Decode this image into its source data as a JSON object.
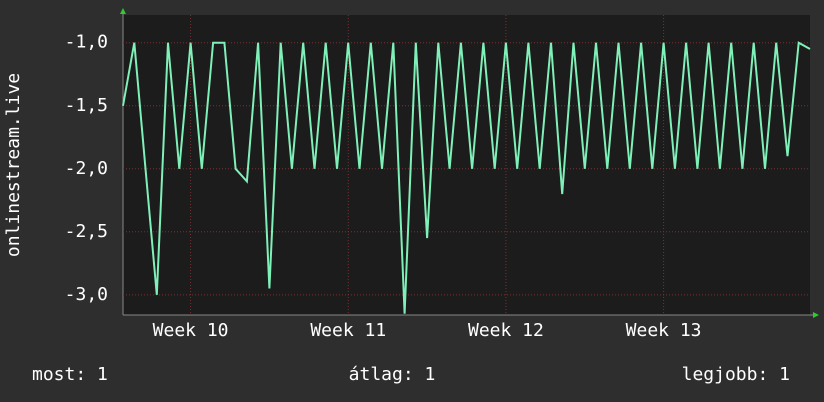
{
  "chart_data": {
    "type": "line",
    "y_label": "onlinestream.live",
    "x": [
      0,
      0.5,
      1,
      1.5,
      2,
      2.5,
      3,
      3.5,
      4,
      4.5,
      5,
      5.5,
      6,
      6.5,
      7,
      7.5,
      8,
      8.5,
      9,
      9.5,
      10,
      10.5,
      11,
      11.5,
      12,
      12.5,
      13,
      13.5,
      14,
      14.5,
      15,
      15.5,
      16,
      16.5,
      17,
      17.5,
      18,
      18.5,
      19,
      19.5,
      20,
      20.5,
      21,
      21.5,
      22,
      22.5,
      23,
      23.5,
      24,
      24.5,
      25,
      25.5,
      26,
      26.5,
      27,
      27.5,
      28,
      28.5,
      29,
      29.5,
      30,
      30.5
    ],
    "series": [
      {
        "color": "#7ff0b8",
        "values": [
          -1.5,
          -1.0,
          -2.0,
          -3.0,
          -1.0,
          -2.0,
          -1.0,
          -2.0,
          -1.0,
          -1.0,
          -2.0,
          -2.1,
          -1.0,
          -2.95,
          -1.0,
          -2.0,
          -1.0,
          -2.0,
          -1.0,
          -2.0,
          -1.0,
          -2.0,
          -1.0,
          -2.0,
          -1.0,
          -3.15,
          -1.0,
          -2.55,
          -1.0,
          -2.0,
          -1.0,
          -2.0,
          -1.0,
          -2.0,
          -1.0,
          -2.0,
          -1.0,
          -2.0,
          -1.0,
          -2.2,
          -1.0,
          -2.0,
          -1.0,
          -2.0,
          -1.0,
          -2.0,
          -1.0,
          -2.0,
          -1.0,
          -2.0,
          -1.0,
          -2.0,
          -1.0,
          -2.0,
          -1.0,
          -2.0,
          -1.0,
          -2.0,
          -1.0,
          -1.9,
          -1.0,
          -1.05
        ]
      }
    ],
    "xlim": [
      0,
      30.5
    ],
    "xticks": [
      {
        "value": 3,
        "label": "Week 10"
      },
      {
        "value": 10,
        "label": "Week 11"
      },
      {
        "value": 17,
        "label": "Week 12"
      },
      {
        "value": 24,
        "label": "Week 13"
      }
    ],
    "ylim": [
      -3.16,
      -0.78
    ],
    "yticks": [
      {
        "value": -3.0,
        "label": "-3,0"
      },
      {
        "value": -2.5,
        "label": "-2,5"
      },
      {
        "value": -2.0,
        "label": "-2,0"
      },
      {
        "value": -1.5,
        "label": "-1,5"
      },
      {
        "value": -1.0,
        "label": "-1,0"
      }
    ],
    "grid": true,
    "footer": [
      "most: 1",
      "átlag: 1",
      "legjobb: 1"
    ]
  }
}
